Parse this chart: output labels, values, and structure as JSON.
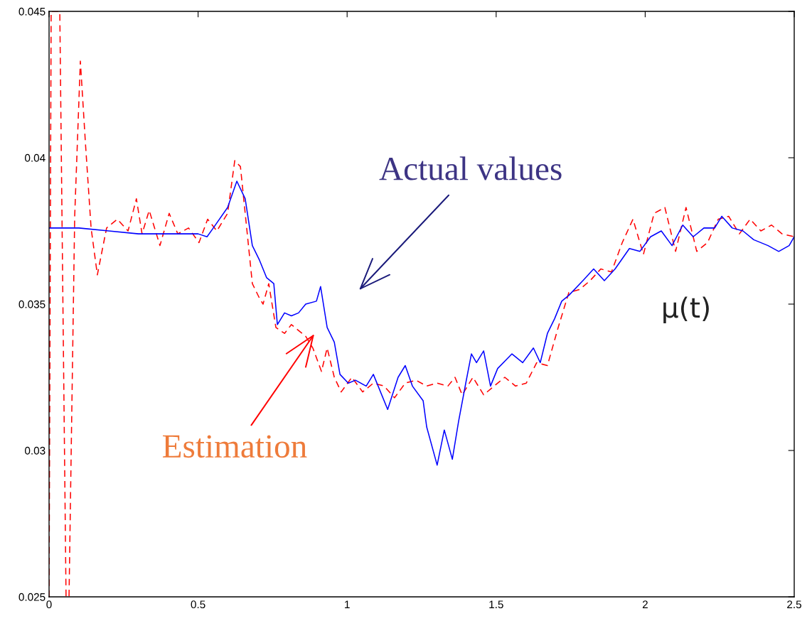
{
  "chart_data": {
    "type": "line",
    "xlim": [
      0,
      2.5
    ],
    "ylim": [
      0.025,
      0.045
    ],
    "xticks": [
      0,
      0.5,
      1,
      1.5,
      2,
      2.5
    ],
    "yticks": [
      0.025,
      0.03,
      0.035,
      0.04,
      0.045
    ],
    "series": [
      {
        "color": "#ff0000",
        "line_style": "dashed",
        "x": [
          0,
          0.007,
          0.036,
          0.057,
          0.067,
          0.086,
          0.105,
          0.122,
          0.141,
          0.162,
          0.193,
          0.229,
          0.265,
          0.293,
          0.312,
          0.336,
          0.372,
          0.403,
          0.432,
          0.468,
          0.503,
          0.532,
          0.563,
          0.599,
          0.623,
          0.642,
          0.658,
          0.682,
          0.706,
          0.718,
          0.737,
          0.761,
          0.79,
          0.813,
          0.837,
          0.861,
          0.885,
          0.914,
          0.933,
          0.957,
          0.98,
          1.016,
          1.052,
          1.088,
          1.124,
          1.159,
          1.195,
          1.231,
          1.267,
          1.302,
          1.338,
          1.362,
          1.386,
          1.422,
          1.458,
          1.493,
          1.529,
          1.565,
          1.601,
          1.636,
          1.672,
          1.708,
          1.744,
          1.78,
          1.815,
          1.851,
          1.887,
          1.923,
          1.959,
          1.994,
          2.03,
          2.066,
          2.102,
          2.137,
          2.173,
          2.209,
          2.245,
          2.28,
          2.316,
          2.352,
          2.388,
          2.424,
          2.459,
          2.5
        ],
        "values": [
          0.025,
          0.045,
          0.045,
          0.025,
          0.025,
          0.038,
          0.0433,
          0.0405,
          0.0376,
          0.036,
          0.0376,
          0.0379,
          0.0375,
          0.0386,
          0.0374,
          0.0382,
          0.037,
          0.0381,
          0.0374,
          0.0376,
          0.0371,
          0.0379,
          0.0375,
          0.0381,
          0.0399,
          0.0397,
          0.0381,
          0.0357,
          0.0352,
          0.035,
          0.0357,
          0.0342,
          0.034,
          0.0343,
          0.0341,
          0.0339,
          0.0335,
          0.0327,
          0.0335,
          0.0325,
          0.032,
          0.0325,
          0.032,
          0.0323,
          0.0322,
          0.0318,
          0.0323,
          0.0324,
          0.0322,
          0.0323,
          0.0322,
          0.0325,
          0.0319,
          0.0325,
          0.0319,
          0.0322,
          0.0325,
          0.0322,
          0.0323,
          0.033,
          0.0329,
          0.0342,
          0.0354,
          0.0355,
          0.0358,
          0.0362,
          0.0361,
          0.0371,
          0.0379,
          0.0367,
          0.0381,
          0.0383,
          0.0368,
          0.0383,
          0.0368,
          0.0371,
          0.0379,
          0.038,
          0.0374,
          0.0379,
          0.0375,
          0.0377,
          0.0374,
          0.0373
        ]
      },
      {
        "color": "#0000ff",
        "line_style": "solid",
        "x": [
          0,
          0.1,
          0.2,
          0.3,
          0.4,
          0.5,
          0.53,
          0.551,
          0.599,
          0.63,
          0.658,
          0.682,
          0.706,
          0.73,
          0.754,
          0.766,
          0.79,
          0.813,
          0.837,
          0.861,
          0.897,
          0.911,
          0.933,
          0.957,
          0.976,
          1.004,
          1.028,
          1.064,
          1.088,
          1.136,
          1.171,
          1.195,
          1.219,
          1.255,
          1.267,
          1.302,
          1.326,
          1.353,
          1.374,
          1.398,
          1.417,
          1.434,
          1.458,
          1.481,
          1.505,
          1.553,
          1.589,
          1.625,
          1.648,
          1.672,
          1.696,
          1.72,
          1.744,
          1.791,
          1.827,
          1.863,
          1.899,
          1.947,
          1.982,
          2.018,
          2.054,
          2.09,
          2.126,
          2.161,
          2.197,
          2.233,
          2.257,
          2.292,
          2.328,
          2.364,
          2.412,
          2.448,
          2.483,
          2.5
        ],
        "values": [
          0.0376,
          0.0376,
          0.0375,
          0.0374,
          0.0374,
          0.0374,
          0.0373,
          0.0376,
          0.0383,
          0.0392,
          0.0386,
          0.037,
          0.0365,
          0.0359,
          0.0357,
          0.0343,
          0.0347,
          0.0346,
          0.0347,
          0.035,
          0.0351,
          0.0356,
          0.0342,
          0.0337,
          0.0326,
          0.0323,
          0.0324,
          0.0322,
          0.0326,
          0.0314,
          0.0325,
          0.0329,
          0.0322,
          0.0317,
          0.0308,
          0.0295,
          0.0307,
          0.0297,
          0.031,
          0.0323,
          0.0333,
          0.033,
          0.0334,
          0.0322,
          0.0328,
          0.0333,
          0.033,
          0.0335,
          0.033,
          0.034,
          0.0345,
          0.0351,
          0.0353,
          0.0358,
          0.0362,
          0.0358,
          0.0362,
          0.0369,
          0.0368,
          0.0373,
          0.0375,
          0.037,
          0.0377,
          0.0373,
          0.0376,
          0.0376,
          0.038,
          0.0376,
          0.0375,
          0.0372,
          0.037,
          0.0368,
          0.037,
          0.0373
        ]
      }
    ],
    "annotations": [
      "Actual values",
      "Estimation",
      "μ(t)"
    ]
  }
}
